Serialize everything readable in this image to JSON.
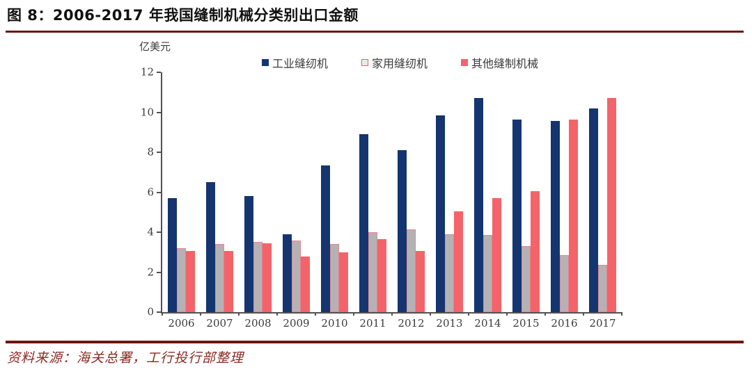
{
  "title": "图 8：2006-2017 年我国缝制机械分类别出口金额",
  "unit_label": "亿美元",
  "legend": {
    "items": [
      {
        "label": "工业缝纫机",
        "swatch_fill": "#143570",
        "swatch_border": ""
      },
      {
        "label": "家用缝纫机",
        "swatch_fill": "#f6e7e6",
        "swatch_border": "#d4696f"
      },
      {
        "label": "其他缝制机械",
        "swatch_fill": "#f5636a",
        "swatch_border": ""
      }
    ]
  },
  "source_note": "资料来源：海关总署，工行投行部整理",
  "colors": {
    "rule": "#6e1511",
    "axis": "#515151",
    "industrial": "#143570",
    "household_fill": "#b5b2b6",
    "household_border": "#e0868d",
    "other": "#f5636a"
  },
  "chart_data": {
    "type": "bar",
    "title": "2006-2017 年我国缝制机械分类别出口金额",
    "ylabel": "亿美元",
    "xlabel": "",
    "ylim": [
      0,
      12
    ],
    "yticks": [
      0,
      2,
      4,
      6,
      8,
      10,
      12
    ],
    "grid": false,
    "legend_position": "top",
    "categories": [
      "2006",
      "2007",
      "2008",
      "2009",
      "2010",
      "2011",
      "2012",
      "2013",
      "2014",
      "2015",
      "2016",
      "2017"
    ],
    "series": [
      {
        "id": "industrial",
        "name": "工业缝纫机",
        "color": "#143570",
        "border": "",
        "values": [
          5.7,
          6.5,
          5.8,
          3.9,
          7.35,
          8.9,
          8.1,
          9.85,
          10.7,
          9.65,
          9.55,
          10.2
        ]
      },
      {
        "id": "household",
        "name": "家用缝纫机",
        "color": "#b5b2b6",
        "border": "#e0868d",
        "values": [
          3.2,
          3.4,
          3.5,
          3.6,
          3.4,
          4.0,
          4.15,
          3.9,
          3.85,
          3.3,
          2.85,
          2.35
        ]
      },
      {
        "id": "other",
        "name": "其他缝制机械",
        "color": "#f5636a",
        "border": "",
        "values": [
          3.05,
          3.05,
          3.45,
          2.8,
          3.0,
          3.65,
          3.05,
          5.05,
          5.7,
          6.05,
          9.65,
          10.7
        ]
      }
    ]
  }
}
